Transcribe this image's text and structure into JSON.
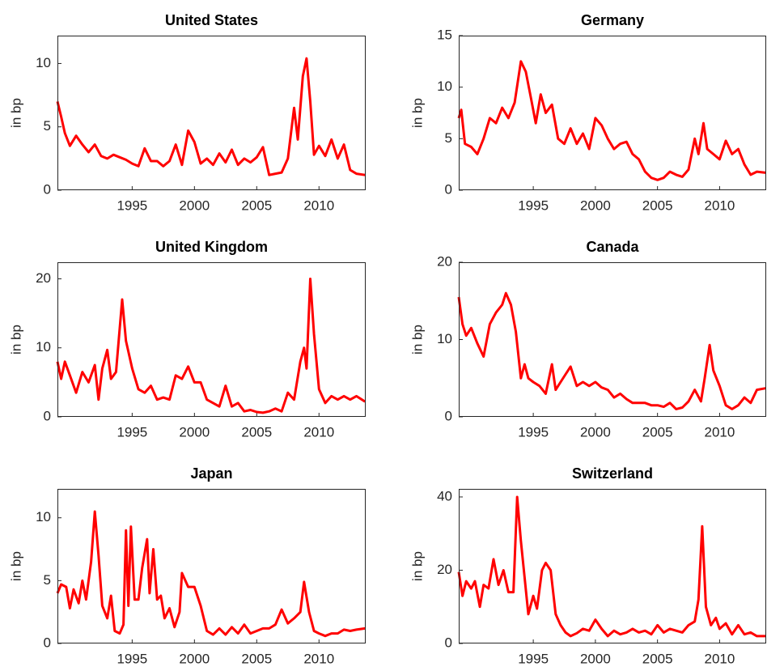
{
  "chart_data": [
    {
      "type": "line",
      "title": "United States",
      "y_label": "in bp",
      "color": "#ff0000",
      "xlim": [
        1989,
        2013.75
      ],
      "xticks": [
        1995,
        2000,
        2005,
        2010
      ],
      "ylim": [
        0,
        12.2
      ],
      "yticks": [
        0,
        5,
        10
      ],
      "x": [
        1989.0,
        1989.3,
        1989.6,
        1990,
        1990.5,
        1991,
        1991.5,
        1992,
        1992.5,
        1993,
        1993.5,
        1994,
        1994.5,
        1995,
        1995.5,
        1996,
        1996.5,
        1997,
        1997.5,
        1998,
        1998.5,
        1999,
        1999.5,
        2000,
        2000.5,
        2001,
        2001.5,
        2002,
        2002.5,
        2003,
        2003.5,
        2004,
        2004.5,
        2005,
        2005.5,
        2006,
        2006.5,
        2007,
        2007.5,
        2008,
        2008.3,
        2008.7,
        2009,
        2009.3,
        2009.6,
        2010,
        2010.5,
        2011,
        2011.5,
        2012,
        2012.5,
        2013,
        2013.7
      ],
      "values": [
        7.0,
        5.8,
        4.5,
        3.5,
        4.3,
        3.6,
        3.0,
        3.6,
        2.7,
        2.5,
        2.8,
        2.6,
        2.4,
        2.1,
        1.9,
        3.3,
        2.3,
        2.3,
        1.9,
        2.3,
        3.6,
        2.0,
        4.7,
        3.8,
        2.1,
        2.5,
        2.0,
        2.9,
        2.2,
        3.2,
        2.0,
        2.5,
        2.2,
        2.6,
        3.4,
        1.2,
        1.3,
        1.4,
        2.5,
        6.5,
        4.0,
        9.0,
        10.4,
        7.0,
        2.8,
        3.5,
        2.7,
        4.0,
        2.5,
        3.6,
        1.6,
        1.3,
        1.2
      ]
    },
    {
      "type": "line",
      "title": "Germany",
      "y_label": "in bp",
      "color": "#ff0000",
      "xlim": [
        1989,
        2013.75
      ],
      "xticks": [
        1995,
        2000,
        2005,
        2010
      ],
      "ylim": [
        0,
        15
      ],
      "yticks": [
        0,
        5,
        10,
        15
      ],
      "x": [
        1989,
        1989.2,
        1989.5,
        1990,
        1990.5,
        1991,
        1991.5,
        1992,
        1992.5,
        1993,
        1993.5,
        1994,
        1994.4,
        1994.8,
        1995.2,
        1995.6,
        1996,
        1996.5,
        1997,
        1997.5,
        1998,
        1998.5,
        1999,
        1999.5,
        2000,
        2000.5,
        2001,
        2001.5,
        2002,
        2002.5,
        2003,
        2003.5,
        2004,
        2004.5,
        2005,
        2005.5,
        2006,
        2006.5,
        2007,
        2007.5,
        2008,
        2008.3,
        2008.7,
        2009,
        2009.5,
        2010,
        2010.5,
        2011,
        2011.5,
        2012,
        2012.5,
        2013,
        2013.7
      ],
      "values": [
        7.0,
        7.8,
        4.5,
        4.2,
        3.5,
        5.0,
        7.0,
        6.5,
        8.0,
        7.0,
        8.5,
        12.5,
        11.5,
        9.0,
        6.5,
        9.3,
        7.5,
        8.3,
        5.0,
        4.5,
        6.0,
        4.5,
        5.5,
        4.0,
        7.0,
        6.3,
        5.0,
        4.0,
        4.5,
        4.7,
        3.5,
        3.0,
        1.8,
        1.2,
        1.0,
        1.2,
        1.8,
        1.5,
        1.3,
        2.0,
        5.0,
        3.5,
        6.5,
        4.0,
        3.5,
        3.0,
        4.8,
        3.5,
        4.0,
        2.5,
        1.5,
        1.8,
        1.7
      ]
    },
    {
      "type": "line",
      "title": "United Kingdom",
      "y_label": "in bp",
      "color": "#ff0000",
      "xlim": [
        1989,
        2013.75
      ],
      "xticks": [
        1995,
        2000,
        2005,
        2010
      ],
      "ylim": [
        0,
        22.4
      ],
      "yticks": [
        0,
        10,
        20
      ],
      "x": [
        1989,
        1989.3,
        1989.6,
        1990,
        1990.5,
        1991,
        1991.5,
        1992,
        1992.3,
        1992.6,
        1993,
        1993.3,
        1993.7,
        1994.2,
        1994.5,
        1995,
        1995.5,
        1996,
        1996.5,
        1997,
        1997.5,
        1998,
        1998.5,
        1999,
        1999.5,
        2000,
        2000.5,
        2001,
        2001.5,
        2002,
        2002.5,
        2003,
        2003.5,
        2004,
        2004.5,
        2005,
        2005.5,
        2006,
        2006.5,
        2007,
        2007.5,
        2008,
        2008.5,
        2008.8,
        2009,
        2009.3,
        2009.6,
        2010,
        2010.5,
        2011,
        2011.5,
        2012,
        2012.5,
        2013,
        2013.7
      ],
      "values": [
        8.0,
        5.5,
        8.0,
        6.0,
        3.5,
        6.5,
        5.0,
        7.5,
        2.5,
        7.0,
        9.7,
        5.5,
        6.5,
        17.0,
        11.0,
        7.0,
        4.0,
        3.5,
        4.5,
        2.5,
        2.8,
        2.5,
        6.0,
        5.5,
        7.3,
        5.0,
        5.0,
        2.5,
        2.0,
        1.5,
        4.5,
        1.5,
        2.0,
        0.8,
        1.0,
        0.7,
        0.6,
        0.8,
        1.2,
        0.8,
        3.5,
        2.5,
        8.0,
        10.0,
        7.0,
        20.0,
        12.0,
        4.0,
        2.0,
        3.0,
        2.5,
        3.0,
        2.5,
        3.0,
        2.2
      ]
    },
    {
      "type": "line",
      "title": "Canada",
      "y_label": "in bp",
      "color": "#ff0000",
      "xlim": [
        1989,
        2013.75
      ],
      "xticks": [
        1995,
        2000,
        2005,
        2010
      ],
      "ylim": [
        0,
        20
      ],
      "yticks": [
        0,
        10,
        20
      ],
      "x": [
        1989,
        1989.3,
        1989.6,
        1990,
        1990.5,
        1991,
        1991.5,
        1992,
        1992.5,
        1992.8,
        1993.2,
        1993.6,
        1994,
        1994.3,
        1994.6,
        1995,
        1995.5,
        1996,
        1996.5,
        1996.8,
        1997.2,
        1997.6,
        1998,
        1998.5,
        1999,
        1999.5,
        2000,
        2000.5,
        2001,
        2001.5,
        2002,
        2002.5,
        2003,
        2004,
        2004.5,
        2005,
        2005.5,
        2006,
        2006.5,
        2007,
        2007.5,
        2008,
        2008.5,
        2008.8,
        2009.2,
        2009.5,
        2010,
        2010.5,
        2011,
        2011.5,
        2012,
        2012.5,
        2013,
        2013.7
      ],
      "values": [
        15.5,
        12,
        10.5,
        11.5,
        9.5,
        7.8,
        12,
        13.5,
        14.5,
        16,
        14.5,
        11,
        5.0,
        6.8,
        5.0,
        4.5,
        4.0,
        3.0,
        6.8,
        3.5,
        4.5,
        5.5,
        6.5,
        4.0,
        4.5,
        4.0,
        4.5,
        3.8,
        3.5,
        2.5,
        3.0,
        2.3,
        1.8,
        1.8,
        1.5,
        1.5,
        1.3,
        1.8,
        1.0,
        1.2,
        2.0,
        3.5,
        2.0,
        5.0,
        9.3,
        6.0,
        4.0,
        1.5,
        1.0,
        1.5,
        2.5,
        1.8,
        3.5,
        3.7
      ]
    },
    {
      "type": "line",
      "title": "Japan",
      "y_label": "in bp",
      "color": "#ff0000",
      "xlim": [
        1989,
        2013.75
      ],
      "xticks": [
        1995,
        2000,
        2005,
        2010
      ],
      "ylim": [
        0,
        12.3
      ],
      "yticks": [
        0,
        5,
        10
      ],
      "x": [
        1989,
        1989.3,
        1989.7,
        1990,
        1990.3,
        1990.7,
        1991,
        1991.3,
        1991.7,
        1992,
        1992.3,
        1992.6,
        1993,
        1993.3,
        1993.6,
        1994,
        1994.3,
        1994.5,
        1994.7,
        1994.9,
        1995.2,
        1995.5,
        1995.8,
        1996.2,
        1996.4,
        1996.7,
        1997,
        1997.3,
        1997.6,
        1998,
        1998.4,
        1998.8,
        1999,
        1999.5,
        2000,
        2000.5,
        2001,
        2001.5,
        2002,
        2002.5,
        2003,
        2003.5,
        2004,
        2004.5,
        2005,
        2005.5,
        2006,
        2006.5,
        2007,
        2007.5,
        2008,
        2008.5,
        2008.8,
        2009.2,
        2009.6,
        2010,
        2010.5,
        2011,
        2011.5,
        2012,
        2012.5,
        2013,
        2013.7
      ],
      "values": [
        4.0,
        4.7,
        4.5,
        2.8,
        4.3,
        3.2,
        5.0,
        3.5,
        6.5,
        10.5,
        7.0,
        3.0,
        2.0,
        3.8,
        1.0,
        0.8,
        1.5,
        9.0,
        3.0,
        9.3,
        3.5,
        3.5,
        6.0,
        8.3,
        4.0,
        7.5,
        3.5,
        3.8,
        2.0,
        2.8,
        1.3,
        2.5,
        5.6,
        4.5,
        4.5,
        3.0,
        1.0,
        0.7,
        1.2,
        0.7,
        1.3,
        0.8,
        1.5,
        0.8,
        1.0,
        1.2,
        1.2,
        1.5,
        2.7,
        1.6,
        2.0,
        2.5,
        4.9,
        2.5,
        1.0,
        0.8,
        0.6,
        0.8,
        0.8,
        1.1,
        1.0,
        1.1,
        1.2
      ]
    },
    {
      "type": "line",
      "title": "Switzerland",
      "y_label": "in bp",
      "color": "#ff0000",
      "xlim": [
        1989,
        2013.75
      ],
      "xticks": [
        1995,
        2000,
        2005,
        2010
      ],
      "ylim": [
        0,
        42.2
      ],
      "yticks": [
        0,
        20,
        40
      ],
      "x": [
        1989,
        1989.3,
        1989.6,
        1990,
        1990.3,
        1990.7,
        1991,
        1991.4,
        1991.8,
        1992.2,
        1992.6,
        1993,
        1993.4,
        1993.7,
        1994,
        1994.3,
        1994.6,
        1995,
        1995.3,
        1995.7,
        1996,
        1996.4,
        1996.8,
        1997.2,
        1997.6,
        1998,
        1998.5,
        1999,
        1999.5,
        2000,
        2000.5,
        2001,
        2001.5,
        2002,
        2002.5,
        2003,
        2003.5,
        2004,
        2004.5,
        2005,
        2005.5,
        2006,
        2006.5,
        2007,
        2007.5,
        2008,
        2008.3,
        2008.6,
        2008.9,
        2009.3,
        2009.7,
        2010,
        2010.5,
        2011,
        2011.5,
        2012,
        2012.5,
        2013,
        2013.7
      ],
      "values": [
        19.5,
        13.0,
        17.0,
        15.0,
        17.0,
        10.0,
        16.0,
        15.0,
        23.0,
        16.0,
        20.0,
        14.0,
        14.0,
        40.0,
        28.0,
        18.0,
        8.0,
        13.0,
        9.5,
        20.0,
        22.0,
        20.0,
        8.0,
        5.0,
        3.0,
        2.0,
        2.8,
        4.0,
        3.5,
        6.5,
        4.0,
        2.0,
        3.5,
        2.5,
        3.0,
        4.0,
        3.0,
        3.5,
        2.5,
        5.0,
        3.0,
        4.0,
        3.5,
        3.0,
        5.0,
        6.0,
        12.0,
        32.0,
        10.0,
        5.0,
        7.0,
        4.0,
        5.5,
        2.5,
        5.0,
        2.5,
        3.0,
        2.0,
        2.0
      ]
    }
  ]
}
